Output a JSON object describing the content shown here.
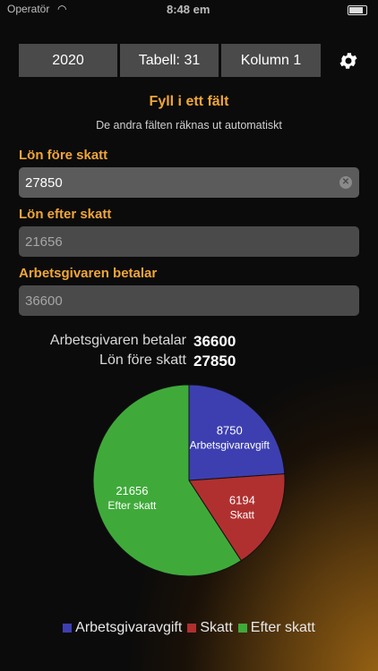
{
  "status": {
    "carrier": "Operatör",
    "time": "8:48 em"
  },
  "toolbar": {
    "year": "2020",
    "table": "Tabell: 31",
    "column": "Kolumn 1"
  },
  "header": {
    "title": "Fyll i ett fält",
    "subtitle": "De andra fälten räknas ut automatiskt"
  },
  "fields": {
    "gross": {
      "label": "Lön före skatt",
      "value": "27850"
    },
    "net": {
      "label": "Lön efter skatt",
      "value": "21656"
    },
    "employer": {
      "label": "Arbetsgivaren betalar",
      "value": "36600"
    }
  },
  "summary": {
    "employer_label": "Arbetsgivaren betalar",
    "employer_value": "36600",
    "gross_label": "Lön före skatt",
    "gross_value": "27850"
  },
  "chart_data": {
    "type": "pie",
    "slices": [
      {
        "label": "Arbetsgivaravgift",
        "value": 8750,
        "color": "#3d3fb0"
      },
      {
        "label": "Skatt",
        "value": 6194,
        "color": "#b0302f"
      },
      {
        "label": "Efter skatt",
        "value": 21656,
        "color": "#3faa3a"
      }
    ],
    "legend": [
      "Arbetsgivaravgift",
      "Skatt",
      "Efter skatt"
    ],
    "legend_position": "bottom"
  }
}
